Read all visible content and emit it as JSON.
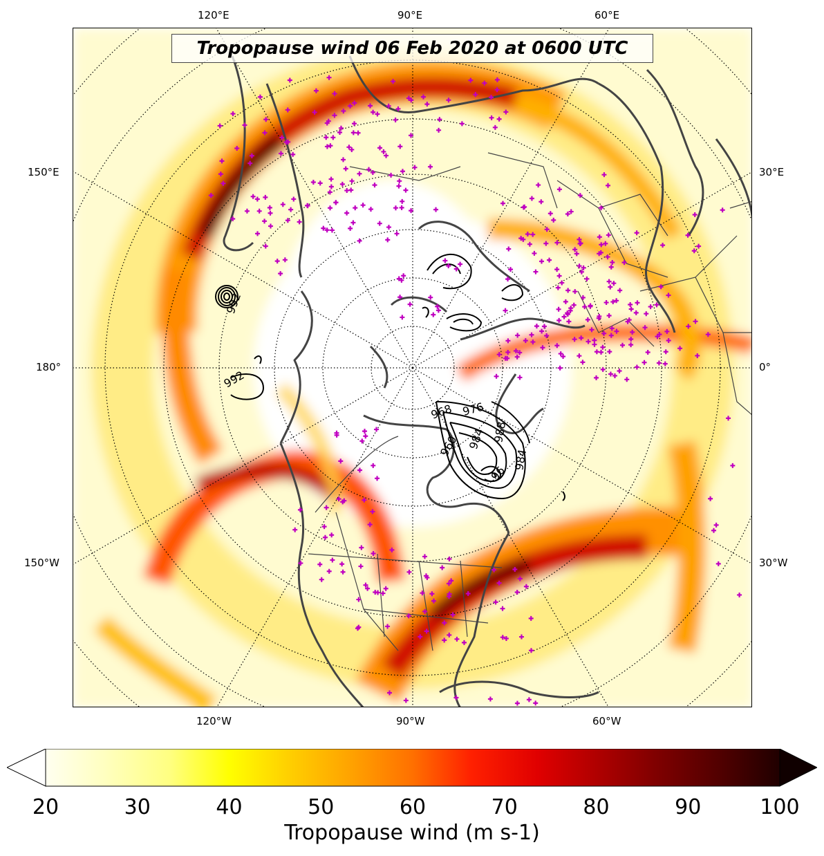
{
  "title": "Tropopause wind 06 Feb 2020 at 0600 UTC",
  "longitude_labels": {
    "top": [
      "120°E",
      "90°E",
      "60°E"
    ],
    "left": [
      "150°E",
      "180°",
      "150°W"
    ],
    "right": [
      "30°E",
      "0°",
      "30°W"
    ],
    "bottom": [
      "120°W",
      "90°W",
      "60°W"
    ]
  },
  "contour_labels": [
    "992",
    "992",
    "984",
    "968",
    "976",
    "988",
    "984",
    "960",
    "96"
  ],
  "colorbar": {
    "ticks": [
      "20",
      "30",
      "40",
      "50",
      "60",
      "70",
      "80",
      "90",
      "100"
    ],
    "label": "Tropopause wind (m s-1)",
    "range": [
      20,
      100
    ],
    "extend": "both",
    "colors": [
      "#fffff0",
      "#ffffc0",
      "#ffff80",
      "#ffff00",
      "#ffd000",
      "#ffa000",
      "#ff7000",
      "#ff2000",
      "#e00000",
      "#b00000",
      "#800000",
      "#500000",
      "#200000"
    ]
  },
  "marker_color": "#c000c0",
  "coastline_color": "#444444"
}
